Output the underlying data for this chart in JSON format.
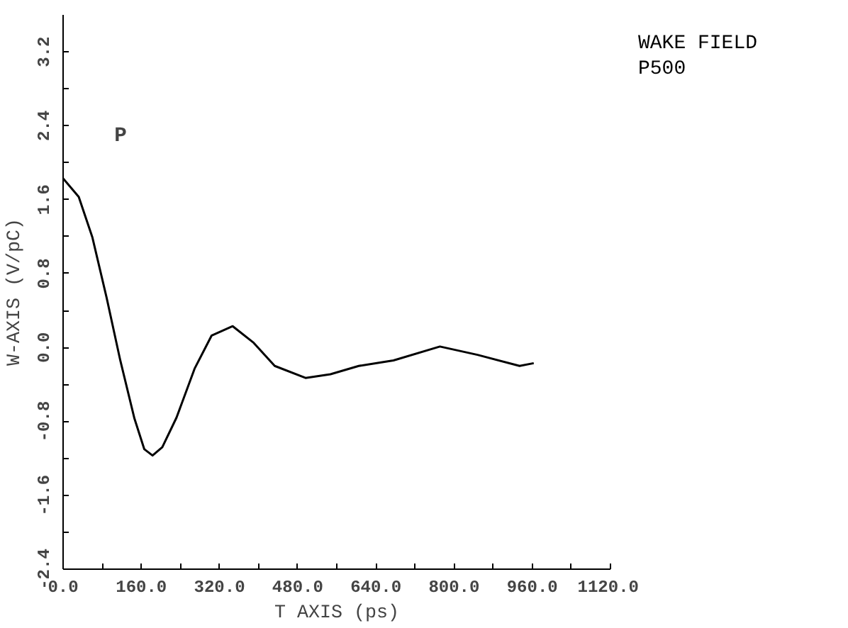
{
  "chart_data": {
    "type": "line",
    "title": "WAKE FIELD",
    "subtitle": "P500",
    "xlabel": "T AXIS (ps)",
    "ylabel": "W-AXIS (V/pC)",
    "x": [
      0,
      32,
      60,
      89,
      117,
      146,
      166,
      183,
      203,
      232,
      269,
      304,
      347,
      390,
      433,
      496,
      547,
      605,
      676,
      771,
      848,
      934,
      963
    ],
    "series": [
      {
        "color": "#000000",
        "values": [
          1.83,
          1.63,
          1.19,
          0.54,
          -0.14,
          -0.77,
          -1.1,
          -1.17,
          -1.08,
          -0.76,
          -0.23,
          0.13,
          0.23,
          0.05,
          -0.2,
          -0.33,
          -0.29,
          -0.2,
          -0.14,
          0.01,
          -0.08,
          -0.2,
          -0.17
        ]
      }
    ],
    "xlim": [
      0,
      1120
    ],
    "ylim": [
      -2.4,
      3.6
    ],
    "xticks": [
      {
        "value": 0,
        "label": "0.0"
      },
      {
        "value": 80,
        "label": null
      },
      {
        "value": 160,
        "label": "160.0"
      },
      {
        "value": 240,
        "label": null
      },
      {
        "value": 320,
        "label": "320.0"
      },
      {
        "value": 400,
        "label": null
      },
      {
        "value": 480,
        "label": "480.0"
      },
      {
        "value": 560,
        "label": null
      },
      {
        "value": 640,
        "label": "640.0"
      },
      {
        "value": 720,
        "label": null
      },
      {
        "value": 800,
        "label": "800.0"
      },
      {
        "value": 880,
        "label": null
      },
      {
        "value": 960,
        "label": "960.0"
      },
      {
        "value": 1040,
        "label": null
      },
      {
        "value": 1120,
        "label": "1120.0"
      }
    ],
    "yticks": [
      -2.4,
      {
        "value": -2.0,
        "label": null
      },
      -1.6,
      {
        "value": -1.2,
        "label": null
      },
      -0.8,
      {
        "value": -0.4,
        "label": null
      },
      {
        "value": 0,
        "label": "0.0"
      },
      {
        "value": 0.4,
        "label": null
      },
      0.8,
      {
        "value": 1.2,
        "label": null
      },
      1.6,
      {
        "value": 2.0,
        "label": null
      },
      2.4,
      {
        "value": 2.8,
        "label": null
      },
      3.2
    ],
    "annotations": [
      "P"
    ],
    "grid": false,
    "marker": "none",
    "line_style": "solid"
  }
}
